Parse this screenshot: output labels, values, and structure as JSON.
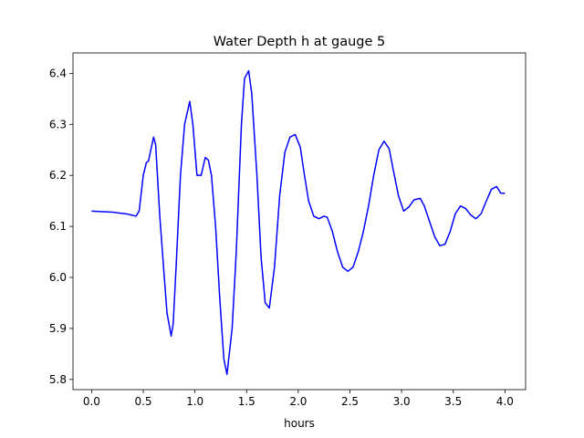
{
  "chart_data": {
    "type": "line",
    "title": "Water Depth h at gauge 5",
    "xlabel": "hours",
    "ylabel": "",
    "xlim": [
      -0.18,
      4.2
    ],
    "ylim": [
      5.78,
      6.44
    ],
    "xticks": [
      0.0,
      0.5,
      1.0,
      1.5,
      2.0,
      2.5,
      3.0,
      3.5,
      4.0
    ],
    "xtick_labels": [
      "0.0",
      "0.5",
      "1.0",
      "1.5",
      "2.0",
      "2.5",
      "3.0",
      "3.5",
      "4.0"
    ],
    "yticks": [
      5.8,
      5.9,
      6.0,
      6.1,
      6.2,
      6.3,
      6.4
    ],
    "ytick_labels": [
      "5.8",
      "5.9",
      "6.0",
      "6.1",
      "6.2",
      "6.3",
      "6.4"
    ],
    "grid": false,
    "series": [
      {
        "color": "#0000ff",
        "x": [
          0.0,
          0.2,
          0.35,
          0.43,
          0.46,
          0.5,
          0.53,
          0.55,
          0.6,
          0.62,
          0.66,
          0.7,
          0.73,
          0.77,
          0.79,
          0.82,
          0.86,
          0.9,
          0.95,
          0.98,
          1.02,
          1.06,
          1.1,
          1.13,
          1.16,
          1.2,
          1.24,
          1.28,
          1.31,
          1.36,
          1.4,
          1.45,
          1.48,
          1.52,
          1.55,
          1.6,
          1.64,
          1.68,
          1.72,
          1.77,
          1.82,
          1.87,
          1.92,
          1.97,
          2.02,
          2.06,
          2.1,
          2.15,
          2.2,
          2.25,
          2.28,
          2.33,
          2.38,
          2.43,
          2.48,
          2.53,
          2.58,
          2.63,
          2.68,
          2.73,
          2.78,
          2.83,
          2.88,
          2.92,
          2.97,
          3.02,
          3.07,
          3.12,
          3.18,
          3.22,
          3.27,
          3.32,
          3.37,
          3.42,
          3.47,
          3.52,
          3.57,
          3.62,
          3.67,
          3.72,
          3.77,
          3.82,
          3.87,
          3.92,
          3.96,
          4.0
        ],
        "y": [
          6.13,
          6.128,
          6.124,
          6.12,
          6.13,
          6.2,
          6.225,
          6.228,
          6.275,
          6.26,
          6.12,
          6.01,
          5.93,
          5.885,
          5.91,
          6.03,
          6.2,
          6.3,
          6.345,
          6.3,
          6.2,
          6.2,
          6.235,
          6.23,
          6.2,
          6.1,
          5.96,
          5.84,
          5.81,
          5.9,
          6.05,
          6.3,
          6.39,
          6.405,
          6.36,
          6.2,
          6.04,
          5.95,
          5.94,
          6.02,
          6.16,
          6.245,
          6.275,
          6.28,
          6.255,
          6.2,
          6.15,
          6.12,
          6.115,
          6.12,
          6.118,
          6.09,
          6.05,
          6.02,
          6.012,
          6.02,
          6.05,
          6.09,
          6.14,
          6.2,
          6.25,
          6.267,
          6.252,
          6.21,
          6.16,
          6.13,
          6.138,
          6.152,
          6.155,
          6.14,
          6.11,
          6.08,
          6.062,
          6.065,
          6.09,
          6.125,
          6.14,
          6.135,
          6.122,
          6.115,
          6.125,
          6.15,
          6.173,
          6.178,
          6.165,
          6.165
        ]
      }
    ]
  }
}
